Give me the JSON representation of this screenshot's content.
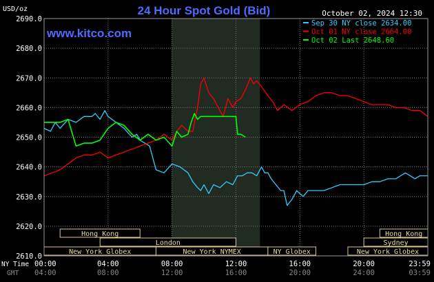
{
  "header": {
    "title": "24 Hour Spot Gold (Bid)",
    "date_time": "October 02, 2024 12:30",
    "currency_unit": "USD/oz",
    "source_link": "www.kitco.com"
  },
  "legend": [
    {
      "label": "Sep 30 NY close 2634.00",
      "color": "#33ccff"
    },
    {
      "label": "Oct 01 NY close 2664.00",
      "color": "#ff0000"
    },
    {
      "label": "Oct 02 Last 2648.60",
      "color": "#00ff00"
    }
  ],
  "x_axis": {
    "row1_label": "NY Time",
    "row2_label": "GMT",
    "ny_ticks": [
      "00:00",
      "04:00",
      "08:00",
      "12:00",
      "16:00",
      "20:00",
      "23:59"
    ],
    "gmt_ticks": [
      "04:00",
      "08:00",
      "12:00",
      "16:00",
      "20:00",
      "24:00",
      "03:59"
    ]
  },
  "sessions": [
    {
      "label": "Hong Kong",
      "row": 0,
      "start": 1.0,
      "end": 6.0
    },
    {
      "label": "Hong Kong",
      "row": 0,
      "start": 21.0,
      "end": 24.0
    },
    {
      "label": "London",
      "row": 1,
      "start": 3.5,
      "end": 12.0
    },
    {
      "label": "Sydney",
      "row": 1,
      "start": 20.0,
      "end": 24.0
    },
    {
      "label": "New York Globex",
      "row": 2,
      "start": 0.0,
      "end": 7.0
    },
    {
      "label": "New York NYMEX",
      "row": 2,
      "start": 7.0,
      "end": 14.0
    },
    {
      "label": "NY Globex",
      "row": 2,
      "start": 14.0,
      "end": 17.0
    },
    {
      "label": "New York Globex",
      "row": 2,
      "start": 19.0,
      "end": 24.0
    }
  ],
  "chart_data": {
    "type": "line",
    "title": "24 Hour Spot Gold (Bid)",
    "xlabel": "NY Time",
    "ylabel": "USD/oz",
    "xlim": [
      0,
      24
    ],
    "ylim": [
      2610,
      2690
    ],
    "y_ticks": [
      "2610.0",
      "2620.0",
      "2630.0",
      "2640.0",
      "2650.0",
      "2660.0",
      "2670.0",
      "2680.0",
      "2690.0"
    ],
    "highlight_hours": [
      8.0,
      13.5
    ],
    "grid": true,
    "legend_position": "top-right",
    "series": [
      {
        "name": "Sep 30 NY close 2634.00",
        "color": "#33ccff",
        "x": [
          0,
          0.4,
          0.7,
          1.0,
          1.5,
          2.0,
          2.5,
          3.0,
          3.2,
          3.5,
          3.8,
          4.0,
          4.5,
          5.0,
          5.5,
          5.8,
          6.0,
          6.3,
          6.6,
          7.0,
          7.5,
          8.0,
          8.5,
          9.0,
          9.3,
          9.6,
          9.8,
          10.0,
          10.3,
          10.6,
          11.0,
          11.4,
          11.8,
          12.1,
          12.4,
          12.7,
          13.0,
          13.3,
          13.6,
          13.8,
          14.0,
          14.2,
          14.5,
          14.8,
          15.0,
          15.2,
          15.5,
          15.8,
          16.2,
          16.5,
          17.0,
          17.5,
          18.0,
          18.5,
          19.0,
          19.5,
          20.0,
          20.5,
          21.0,
          21.5,
          22.0,
          22.3,
          22.6,
          22.9,
          23.2,
          23.5,
          23.8,
          24.0
        ],
        "values": [
          2653,
          2652,
          2655,
          2653,
          2656,
          2655,
          2657,
          2657,
          2658,
          2656,
          2659,
          2657,
          2655,
          2653,
          2650,
          2651,
          2649,
          2648,
          2647,
          2639,
          2638,
          2641,
          2640,
          2638,
          2635,
          2633,
          2632,
          2634,
          2631,
          2634,
          2633,
          2635,
          2634,
          2637,
          2637,
          2638,
          2638,
          2637,
          2640,
          2638,
          2638,
          2636,
          2634,
          2632,
          2632,
          2627,
          2629,
          2632,
          2630,
          2632,
          2632,
          2632,
          2633,
          2634,
          2634,
          2634,
          2634,
          2635,
          2635,
          2636,
          2636,
          2637,
          2638,
          2637,
          2636,
          2637,
          2637,
          2637
        ]
      },
      {
        "name": "Oct 01 NY close 2664.00",
        "color": "#ff0000",
        "x": [
          0,
          0.5,
          1.0,
          1.5,
          2.0,
          2.5,
          3.0,
          3.5,
          4.0,
          4.5,
          5.0,
          5.5,
          6.0,
          6.5,
          7.0,
          7.5,
          8.0,
          8.3,
          8.6,
          9.0,
          9.3,
          9.6,
          9.8,
          10.0,
          10.3,
          10.6,
          10.9,
          11.2,
          11.5,
          11.8,
          12.0,
          12.3,
          12.6,
          12.9,
          13.1,
          13.3,
          13.6,
          14.0,
          14.3,
          14.6,
          15.0,
          15.5,
          16.0,
          16.5,
          17.0,
          17.5,
          18.0,
          18.5,
          19.0,
          19.5,
          20.0,
          20.5,
          21.0,
          21.5,
          22.0,
          22.5,
          23.0,
          23.5,
          24.0
        ],
        "values": [
          2637,
          2638,
          2639,
          2641,
          2643,
          2644,
          2644,
          2645,
          2643,
          2644,
          2645,
          2646,
          2647,
          2648,
          2649,
          2651,
          2649,
          2652,
          2654,
          2652,
          2652,
          2660,
          2668,
          2670,
          2665,
          2663,
          2660,
          2657,
          2663,
          2660,
          2662,
          2663,
          2666,
          2670,
          2668,
          2669,
          2667,
          2664,
          2662,
          2659,
          2661,
          2659,
          2661,
          2662,
          2664,
          2665,
          2665,
          2664,
          2664,
          2663,
          2662,
          2661,
          2661,
          2661,
          2660,
          2660,
          2659,
          2659,
          2657
        ]
      },
      {
        "name": "Oct 02 Last 2648.60",
        "color": "#00ff00",
        "x": [
          0,
          0.5,
          1.0,
          1.5,
          2.0,
          2.5,
          3.0,
          3.5,
          4.0,
          4.5,
          5.0,
          5.5,
          6.0,
          6.5,
          7.0,
          7.5,
          8.0,
          8.3,
          8.6,
          9.0,
          9.2,
          9.4,
          9.6,
          9.8,
          10.2,
          10.6,
          11.0,
          11.5,
          11.8,
          12.0,
          12.1,
          12.3,
          12.6
        ],
        "values": [
          2655,
          2655,
          2655,
          2656,
          2647,
          2648,
          2648,
          2649,
          2653,
          2655,
          2654,
          2651,
          2649,
          2651,
          2649,
          2650,
          2647,
          2652,
          2650,
          2651,
          2655,
          2658,
          2656,
          2657,
          2657,
          2657,
          2657,
          2657,
          2657,
          2657,
          2651,
          2651,
          2650
        ]
      }
    ]
  }
}
